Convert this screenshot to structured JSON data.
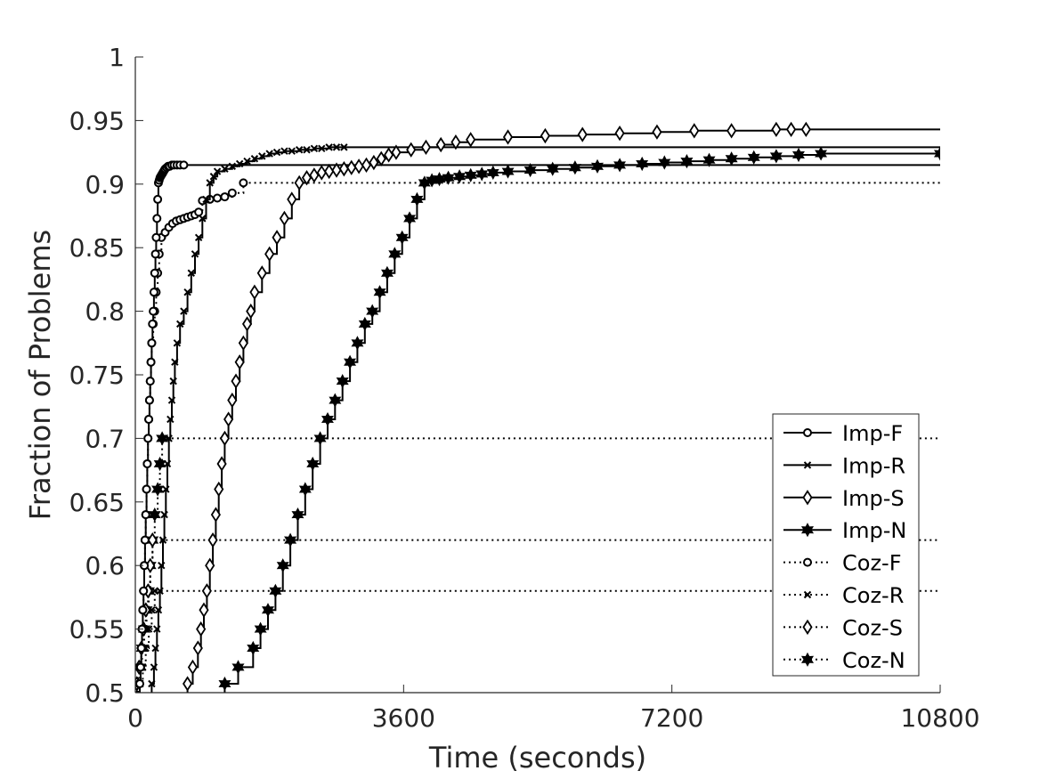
{
  "chart_data": {
    "type": "line",
    "step": true,
    "xlabel": "Time (seconds)",
    "ylabel": "Fraction of Problems",
    "xlim": [
      0,
      10800
    ],
    "ylim": [
      0.5,
      1
    ],
    "xticks": [
      0,
      3600,
      7200,
      10800
    ],
    "xtick_labels": [
      "0",
      "3600",
      "7200",
      "10800"
    ],
    "yticks": [
      0.5,
      0.55,
      0.6,
      0.65,
      0.7,
      0.75,
      0.8,
      0.85,
      0.9,
      0.95,
      1
    ],
    "ytick_labels": [
      "0.5",
      "0.55",
      "0.6",
      "0.65",
      "0.7",
      "0.75",
      "0.8",
      "0.85",
      "0.9",
      "0.95",
      "1"
    ],
    "grid": false,
    "legend_position": "bottom-right",
    "series_color": "#000000",
    "series": [
      {
        "name": "Coz-N",
        "marker": "hexagram",
        "dash": "dotted",
        "x": [
          30,
          60,
          90,
          120,
          150,
          180,
          200,
          230,
          260,
          300,
          330,
          360
        ],
        "y": [
          0.507,
          0.52,
          0.535,
          0.55,
          0.565,
          0.58,
          0.6,
          0.62,
          0.64,
          0.66,
          0.68,
          0.7
        ]
      },
      {
        "name": "Coz-S",
        "marker": "diamond",
        "dash": "dotted",
        "x": [
          20,
          50,
          80,
          110,
          140,
          170,
          200,
          230
        ],
        "y": [
          0.507,
          0.52,
          0.535,
          0.55,
          0.565,
          0.58,
          0.6,
          0.62
        ]
      },
      {
        "name": "Coz-R",
        "marker": "x",
        "dash": "dotted",
        "x": [
          60,
          100,
          140,
          180,
          220,
          260
        ],
        "y": [
          0.507,
          0.52,
          0.535,
          0.55,
          0.565,
          0.58
        ]
      },
      {
        "name": "Coz-F",
        "marker": "circle",
        "dash": "dotted",
        "x": [
          50,
          70,
          80,
          90,
          100,
          110,
          120,
          130,
          140,
          150,
          160,
          170,
          180,
          190,
          200,
          210,
          220,
          240,
          260,
          280,
          300,
          320,
          350,
          400,
          450,
          500,
          550,
          600,
          650,
          700,
          750,
          800,
          850,
          900,
          1000,
          1100,
          1200,
          1300,
          1450
        ],
        "y": [
          0.507,
          0.52,
          0.535,
          0.55,
          0.565,
          0.58,
          0.6,
          0.62,
          0.64,
          0.66,
          0.68,
          0.7,
          0.715,
          0.73,
          0.745,
          0.76,
          0.775,
          0.79,
          0.8,
          0.815,
          0.83,
          0.845,
          0.858,
          0.862,
          0.866,
          0.869,
          0.871,
          0.872,
          0.873,
          0.874,
          0.875,
          0.876,
          0.878,
          0.887,
          0.888,
          0.889,
          0.89,
          0.893,
          0.901
        ]
      },
      {
        "name": "Imp-F",
        "marker": "circle",
        "dash": "solid",
        "x": [
          60,
          70,
          80,
          90,
          100,
          110,
          120,
          130,
          140,
          150,
          160,
          170,
          180,
          190,
          200,
          210,
          220,
          230,
          240,
          250,
          260,
          270,
          280,
          290,
          300,
          310,
          320,
          330,
          340,
          350,
          360,
          370,
          380,
          390,
          400,
          420,
          440,
          460,
          490,
          520,
          560,
          600,
          650
        ],
        "y": [
          0.507,
          0.52,
          0.535,
          0.55,
          0.565,
          0.58,
          0.6,
          0.62,
          0.64,
          0.66,
          0.68,
          0.7,
          0.715,
          0.73,
          0.745,
          0.76,
          0.775,
          0.79,
          0.8,
          0.815,
          0.83,
          0.845,
          0.858,
          0.873,
          0.888,
          0.901,
          0.903,
          0.905,
          0.906,
          0.907,
          0.908,
          0.909,
          0.91,
          0.911,
          0.912,
          0.913,
          0.914,
          0.914,
          0.915,
          0.915,
          0.915,
          0.915,
          0.915
        ]
      },
      {
        "name": "Imp-R",
        "marker": "x",
        "dash": "solid",
        "x": [
          220,
          250,
          270,
          290,
          310,
          330,
          350,
          370,
          390,
          410,
          430,
          450,
          470,
          490,
          510,
          530,
          560,
          600,
          650,
          700,
          750,
          800,
          850,
          900,
          950,
          1000,
          1050,
          1100,
          1200,
          1300,
          1400,
          1500,
          1600,
          1700,
          1800,
          1900,
          2000,
          2100,
          2200,
          2300,
          2400,
          2500,
          2600,
          2700,
          2800
        ],
        "y": [
          0.507,
          0.52,
          0.535,
          0.55,
          0.565,
          0.58,
          0.6,
          0.62,
          0.64,
          0.66,
          0.68,
          0.7,
          0.715,
          0.73,
          0.745,
          0.76,
          0.775,
          0.79,
          0.8,
          0.815,
          0.83,
          0.845,
          0.858,
          0.873,
          0.888,
          0.901,
          0.906,
          0.91,
          0.912,
          0.914,
          0.916,
          0.918,
          0.92,
          0.922,
          0.924,
          0.925,
          0.926,
          0.926,
          0.927,
          0.927,
          0.928,
          0.928,
          0.929,
          0.929,
          0.929
        ]
      },
      {
        "name": "Imp-S",
        "marker": "diamond",
        "dash": "solid",
        "x": [
          700,
          770,
          840,
          880,
          920,
          960,
          1000,
          1040,
          1080,
          1120,
          1160,
          1200,
          1250,
          1300,
          1350,
          1400,
          1450,
          1500,
          1550,
          1600,
          1700,
          1800,
          1900,
          2000,
          2100,
          2200,
          2300,
          2400,
          2500,
          2600,
          2700,
          2800,
          2900,
          3000,
          3100,
          3200,
          3300,
          3400,
          3500,
          3700,
          3900,
          4100,
          4300,
          4500,
          5000,
          5500,
          6000,
          6500,
          7000,
          7500,
          8000,
          8600,
          8800,
          9000
        ],
        "y": [
          0.507,
          0.52,
          0.535,
          0.55,
          0.565,
          0.58,
          0.6,
          0.62,
          0.64,
          0.66,
          0.68,
          0.7,
          0.715,
          0.73,
          0.745,
          0.76,
          0.775,
          0.79,
          0.8,
          0.815,
          0.83,
          0.845,
          0.858,
          0.873,
          0.888,
          0.901,
          0.905,
          0.907,
          0.909,
          0.91,
          0.911,
          0.912,
          0.913,
          0.914,
          0.915,
          0.917,
          0.92,
          0.923,
          0.925,
          0.927,
          0.929,
          0.931,
          0.933,
          0.935,
          0.937,
          0.938,
          0.939,
          0.94,
          0.941,
          0.942,
          0.942,
          0.943,
          0.943,
          0.943
        ]
      },
      {
        "name": "Imp-N",
        "marker": "hexagram",
        "dash": "solid",
        "x": [
          1200,
          1380,
          1580,
          1680,
          1780,
          1880,
          1980,
          2080,
          2180,
          2280,
          2380,
          2480,
          2580,
          2680,
          2780,
          2880,
          2980,
          3080,
          3180,
          3280,
          3380,
          3480,
          3580,
          3680,
          3780,
          3880,
          3980,
          4080,
          4200,
          4350,
          4500,
          4650,
          4800,
          5000,
          5300,
          5600,
          5900,
          6200,
          6500,
          6800,
          7100,
          7400,
          7700,
          8000,
          8300,
          8600,
          8900,
          9200,
          10800
        ],
        "y": [
          0.507,
          0.52,
          0.535,
          0.55,
          0.565,
          0.58,
          0.6,
          0.62,
          0.64,
          0.66,
          0.68,
          0.7,
          0.715,
          0.73,
          0.745,
          0.76,
          0.775,
          0.79,
          0.8,
          0.815,
          0.83,
          0.845,
          0.858,
          0.873,
          0.888,
          0.901,
          0.903,
          0.904,
          0.905,
          0.906,
          0.907,
          0.908,
          0.909,
          0.91,
          0.911,
          0.912,
          0.913,
          0.914,
          0.915,
          0.916,
          0.917,
          0.918,
          0.919,
          0.92,
          0.921,
          0.922,
          0.923,
          0.924,
          0.924
        ]
      }
    ]
  }
}
